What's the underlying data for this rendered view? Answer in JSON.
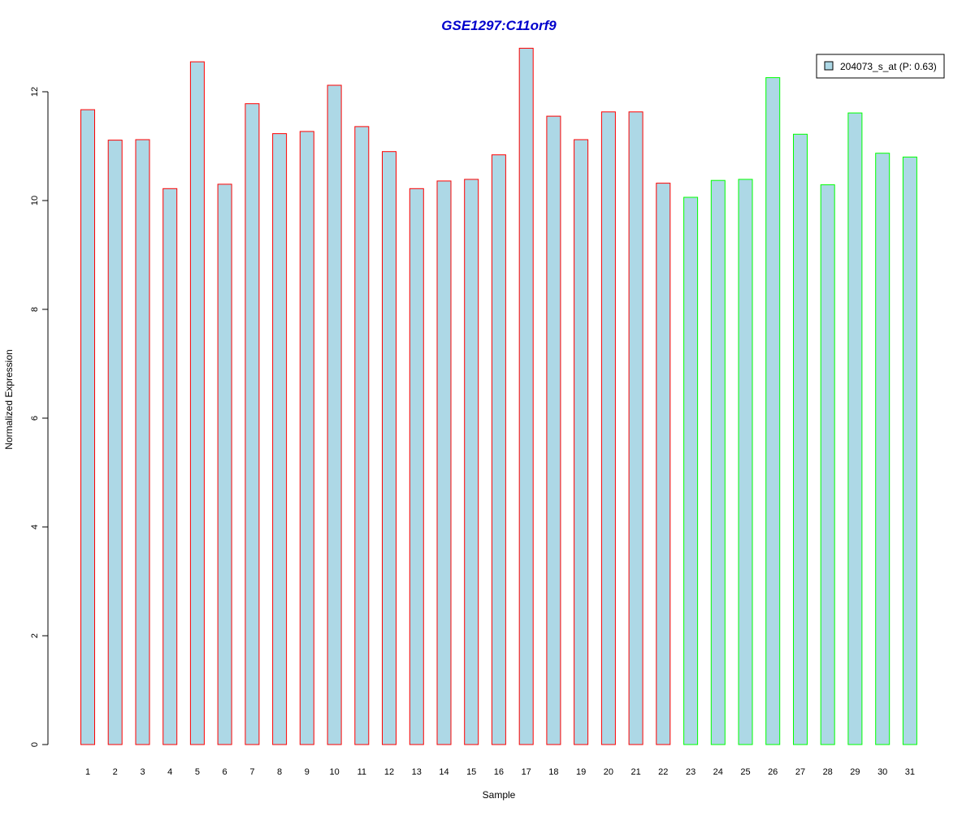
{
  "chart_data": {
    "type": "bar",
    "title": "GSE1297:C11orf9",
    "xlabel": "Sample",
    "ylabel": "Normalized Expression",
    "ylim": [
      0,
      12.8
    ],
    "yticks": [
      0,
      2,
      4,
      6,
      8,
      10,
      12
    ],
    "grid": false,
    "legend_position": "top-right",
    "categories": [
      "1",
      "2",
      "3",
      "4",
      "5",
      "6",
      "7",
      "8",
      "9",
      "10",
      "11",
      "12",
      "13",
      "14",
      "15",
      "16",
      "17",
      "18",
      "19",
      "20",
      "21",
      "22",
      "23",
      "24",
      "25",
      "26",
      "27",
      "28",
      "29",
      "30",
      "31"
    ],
    "series": [
      {
        "name": "204073_s_at (P: 0.63)",
        "values": [
          11.67,
          11.11,
          11.12,
          10.22,
          12.55,
          10.3,
          11.78,
          11.23,
          11.27,
          12.12,
          11.36,
          10.9,
          10.22,
          10.36,
          10.39,
          10.84,
          12.8,
          11.55,
          11.12,
          11.63,
          11.63,
          10.32,
          10.06,
          10.37,
          10.39,
          12.26,
          11.22,
          10.29,
          11.61,
          10.87,
          10.8
        ],
        "fill_color": "#add8e6"
      }
    ],
    "group_border_colors": [
      "#ff0000",
      "#ff0000",
      "#ff0000",
      "#ff0000",
      "#ff0000",
      "#ff0000",
      "#ff0000",
      "#ff0000",
      "#ff0000",
      "#ff0000",
      "#ff0000",
      "#ff0000",
      "#ff0000",
      "#ff0000",
      "#ff0000",
      "#ff0000",
      "#ff0000",
      "#ff0000",
      "#ff0000",
      "#ff0000",
      "#ff0000",
      "#ff0000",
      "#00ff00",
      "#00ff00",
      "#00ff00",
      "#00ff00",
      "#00ff00",
      "#00ff00",
      "#00ff00",
      "#00ff00",
      "#00ff00"
    ],
    "title_color": "#0000cc"
  }
}
